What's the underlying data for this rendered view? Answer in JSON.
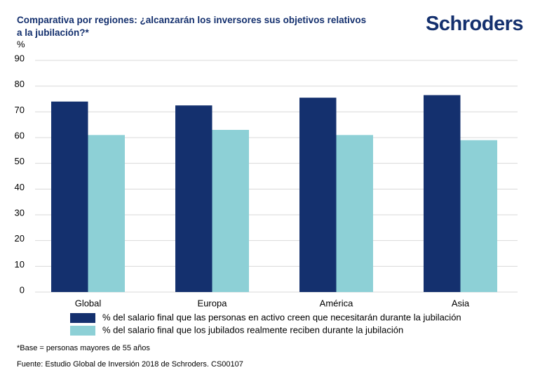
{
  "brand": "Schroders",
  "chart_data": {
    "type": "bar",
    "title": "Comparativa por regiones: ¿alcanzarán los inversores sus objetivos relativos a la jubilación?*",
    "y_label": "%",
    "categories": [
      "Global",
      "Europa",
      "América",
      "Asia"
    ],
    "series": [
      {
        "name": "% del salario final que las personas en activo creen que necesitarán durante la jubilación",
        "color": "#14306e",
        "values": [
          74,
          72.5,
          75.5,
          76.5
        ]
      },
      {
        "name": "% del salario final que los jubilados realmente reciben durante la jubilación",
        "color": "#8dd0d6",
        "values": [
          61,
          63,
          61,
          59
        ]
      }
    ],
    "ylim": [
      0,
      90
    ],
    "yticks": [
      0,
      10,
      20,
      30,
      40,
      50,
      60,
      70,
      80,
      90
    ],
    "grid": true,
    "notes": [
      "*Base = personas mayores de 55 años",
      "Fuente: Estudio Global de Inversión 2018 de Schroders. CS00107"
    ]
  }
}
